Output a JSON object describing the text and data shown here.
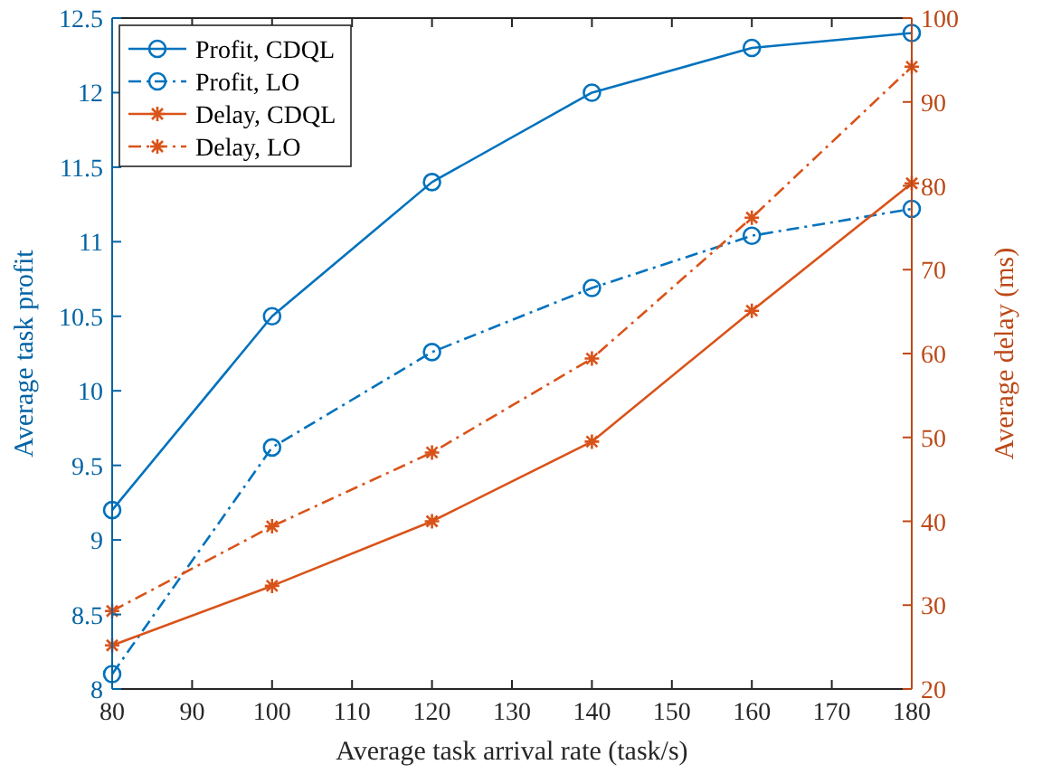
{
  "chart_data": {
    "type": "line",
    "xlabel": "Average task arrival rate (task/s)",
    "ylabel": "Average task profit",
    "y2label": "Average delay (ms)",
    "x": [
      80,
      100,
      120,
      140,
      160,
      180
    ],
    "xlim": [
      80,
      180
    ],
    "xticks": [
      80,
      90,
      100,
      110,
      120,
      130,
      140,
      150,
      160,
      170,
      180
    ],
    "ylim": [
      8,
      12.5
    ],
    "yticks": [
      8,
      8.5,
      9,
      9.5,
      10,
      10.5,
      11,
      11.5,
      12,
      12.5
    ],
    "y2lim": [
      20,
      100
    ],
    "y2ticks": [
      20,
      30,
      40,
      50,
      60,
      70,
      80,
      90,
      100
    ],
    "legend": "top left",
    "series": [
      {
        "name": "Profit, CDQL",
        "color": "#0072bd",
        "values": [
          9.2,
          10.5,
          11.4,
          12.0,
          12.3,
          12.4
        ],
        "marker": "circle",
        "line_style": "solid"
      },
      {
        "name": "Profit, LO",
        "color": "#0072bd",
        "values": [
          8.1,
          9.62,
          10.26,
          10.69,
          11.04,
          11.22
        ],
        "marker": "circle",
        "line_style": "dashdot"
      },
      {
        "name": "Delay, CDQL",
        "color": "#d95319",
        "values": [
          25.2,
          32.3,
          40.0,
          49.5,
          65.1,
          80.3
        ],
        "marker": "cross",
        "line_style": "solid",
        "axis": "y2"
      },
      {
        "name": "Delay, LO",
        "color": "#d95319",
        "values": [
          29.3,
          39.4,
          48.2,
          59.4,
          76.2,
          94.2
        ],
        "marker": "cross",
        "line_style": "dashdot",
        "axis": "y2"
      }
    ]
  }
}
